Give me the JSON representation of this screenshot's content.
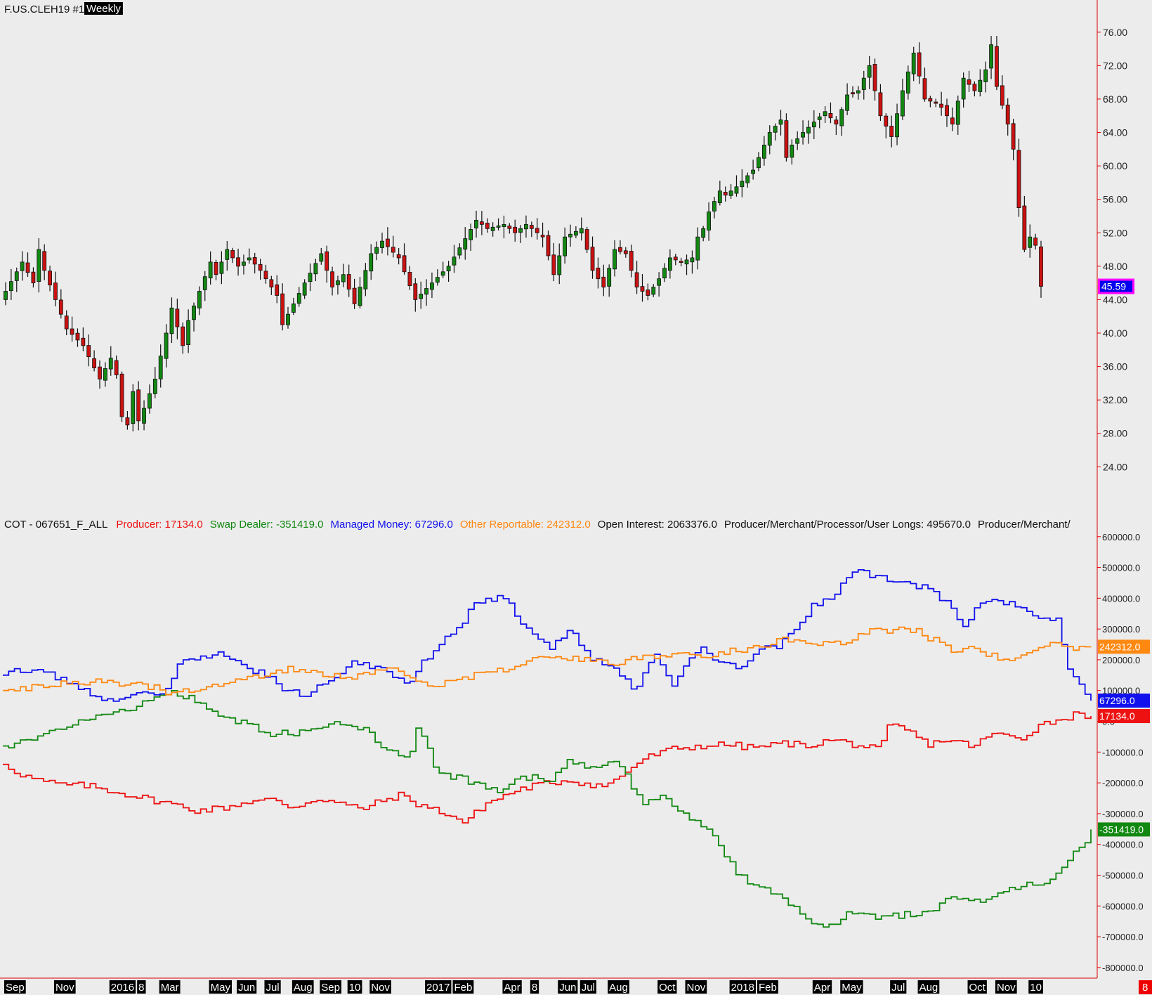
{
  "colors": {
    "background": "#ececec",
    "up_candle": "#118811",
    "down_candle": "#cc1111",
    "axis_red": "#dd0000",
    "producer": "#ee1111",
    "swap_dealer": "#118811",
    "managed_money": "#1111ee",
    "other_reportable": "#ff8811",
    "open_interest": "#111111"
  },
  "price_panel": {
    "symbol": "F.US.CLEH19 #1",
    "interval": "Weekly",
    "last_value_label": "45.59",
    "last_value": 45.59,
    "y_range": [
      21.0,
      78.0
    ],
    "y_ticks": [
      "76.00",
      "72.00",
      "68.00",
      "64.00",
      "60.00",
      "56.00",
      "52.00",
      "48.00",
      "44.00",
      "40.00",
      "36.00",
      "32.00",
      "28.00",
      "24.00"
    ],
    "y_tick_values": [
      76,
      72,
      68,
      64,
      60,
      56,
      52,
      48,
      44,
      40,
      36,
      32,
      28,
      24
    ]
  },
  "cot_panel": {
    "title": "COT - 067651_F_ALL",
    "legend": [
      {
        "key": "producer",
        "text": "Producer: 17134.0"
      },
      {
        "key": "swap_dealer",
        "text": "Swap Dealer: -351419.0"
      },
      {
        "key": "managed_money",
        "text": "Managed Money: 67296.0"
      },
      {
        "key": "other_reportable",
        "text": "Other Reportable: 242312.0"
      },
      {
        "key": "open_interest",
        "text": "Open Interest: 2063376.0"
      },
      {
        "key": "open_interest",
        "text": "Producer/Merchant/Processor/User Longs: 495670.0"
      },
      {
        "key": "open_interest",
        "text": "Producer/Merchant/"
      }
    ],
    "y_range": [
      -830000,
      620000
    ],
    "y_ticks": [
      "600000.0",
      "500000.0",
      "400000.0",
      "300000.0",
      "200000.0",
      "100000.0",
      "0.0",
      "-100000.0",
      "-200000.0",
      "-300000.0",
      "-400000.0",
      "-500000.0",
      "-600000.0",
      "-700000.0",
      "-800000.0"
    ],
    "y_tick_values": [
      600000,
      500000,
      400000,
      300000,
      200000,
      100000,
      0,
      -100000,
      -200000,
      -300000,
      -400000,
      -500000,
      -600000,
      -700000,
      -800000
    ],
    "last_labels": {
      "other_reportable": "242312.0",
      "managed_money": "67296.0",
      "producer": "17134.0",
      "swap_dealer": "-351419.0"
    }
  },
  "x_axis": {
    "labels": [
      "Sep",
      "Nov",
      "2016",
      "8",
      "Mar",
      "May",
      "Jun",
      "Jul",
      "Aug",
      "Sep",
      "10",
      "Nov",
      "2017",
      "Feb",
      "Apr",
      "8",
      "Jun",
      "Jul",
      "Aug",
      "Oct",
      "Nov",
      "2018",
      "Feb",
      "Apr",
      "May",
      "Jul",
      "Aug",
      "Oct",
      "Nov",
      "10"
    ],
    "label_bar_index": [
      0,
      9,
      19,
      24,
      28,
      37,
      42,
      47,
      52,
      57,
      62,
      66,
      76,
      81,
      90,
      95,
      100,
      104,
      109,
      118,
      123,
      131,
      136,
      146,
      151,
      160,
      165,
      174,
      179,
      185
    ],
    "corner_label": "8"
  },
  "chart_data": [
    {
      "type": "candlestick",
      "title": "F.US.CLEH19 #1 Weekly",
      "interval": "Weekly",
      "ylim": [
        21.0,
        78.0
      ],
      "grid": false,
      "anchors": [
        45.0,
        48.5,
        46.0,
        50.0,
        47.5,
        44.0,
        40.5,
        38.5,
        34.5,
        37.0,
        35.0,
        30.0,
        29.0,
        33.0,
        29.5,
        31.0,
        34.5,
        40.0,
        43.0,
        38.5,
        41.5,
        45.0,
        48.5,
        47.0,
        50.0,
        48.0,
        49.0,
        47.5,
        44.5,
        41.0,
        46.0,
        49.5,
        45.5,
        47.0,
        43.5,
        49.5,
        51.0,
        49.0,
        44.0,
        46.0,
        48.0,
        53.5,
        52.5,
        53.0,
        52.0,
        53.0,
        51.5,
        47.0,
        51.5,
        52.5,
        47.5,
        45.5,
        50.0,
        49.5,
        45.5,
        44.5,
        46.5,
        49.0,
        48.5,
        49.0,
        51.5,
        52.5,
        54.5,
        57.0,
        56.5,
        57.5,
        59.5,
        64.0,
        65.5,
        61.0,
        62.5,
        64.0,
        66.5,
        65.0,
        68.5,
        69.0,
        72.0,
        66.0,
        63.5,
        69.0,
        73.5,
        68.0,
        67.5,
        67.0,
        65.0,
        70.5,
        69.0,
        71.5,
        74.5,
        69.5,
        65.0,
        62.0,
        55.0,
        50.0,
        51.5,
        50.5,
        45.59
      ],
      "anchor_bar_index": [
        0,
        3,
        5,
        6,
        7,
        9,
        11,
        14,
        17,
        19,
        20,
        21,
        22,
        23,
        24,
        25,
        27,
        29,
        30,
        32,
        33,
        35,
        37,
        38,
        40,
        42,
        44,
        46,
        49,
        50,
        54,
        57,
        59,
        61,
        63,
        66,
        68,
        71,
        74,
        77,
        80,
        85,
        87,
        90,
        92,
        94,
        97,
        99,
        101,
        104,
        106,
        108,
        110,
        112,
        114,
        116,
        118,
        120,
        122,
        124,
        125,
        126,
        127,
        129,
        130,
        132,
        135,
        138,
        140,
        141,
        142,
        144,
        148,
        150,
        152,
        154,
        156,
        158,
        160,
        162,
        164,
        166,
        168,
        169,
        171,
        173,
        175,
        177,
        178,
        179,
        181,
        182,
        183,
        184,
        185,
        186,
        187
      ],
      "bar_count": 188,
      "last": 45.59
    },
    {
      "type": "line",
      "title": "COT - 067651_F_ALL",
      "step": true,
      "ylim": [
        -830000,
        620000
      ],
      "grid": false,
      "x_count": 188,
      "series": [
        {
          "name": "Producer",
          "color": "#ee1111",
          "last": 17134.0,
          "anchors": [
            -140000,
            -175000,
            -195000,
            -205000,
            -210000,
            -230000,
            -250000,
            -270000,
            -290000,
            -280000,
            -260000,
            -255000,
            -280000,
            -250000,
            -270000,
            -285000,
            -260000,
            -240000,
            -270000,
            -300000,
            -330000,
            -270000,
            -230000,
            -210000,
            -200000,
            -190000,
            -205000,
            -210000,
            -120000,
            -90000,
            -80000,
            -75000,
            -85000,
            -80000,
            -70000,
            -80000,
            -60000,
            -80000,
            -95000,
            -10000,
            -30000,
            -75000,
            -60000,
            -80000,
            -40000,
            -55000,
            -10000,
            5000,
            25000,
            17134
          ],
          "anchor_bar_index": [
            0,
            4,
            8,
            12,
            18,
            24,
            30,
            36,
            41,
            47,
            52,
            57,
            61,
            67,
            72,
            76,
            80,
            84,
            88,
            94,
            98,
            102,
            108,
            112,
            116,
            120,
            124,
            128,
            136,
            142,
            148,
            154,
            158,
            162,
            166,
            170,
            176,
            182,
            186,
            188,
            192,
            196,
            200,
            206,
            210,
            216,
            220,
            224,
            228,
            231
          ]
        },
        {
          "name": "Swap Dealer",
          "color": "#118811",
          "last": -351419.0,
          "anchors": [
            -80000,
            -60000,
            -40000,
            0,
            20000,
            60000,
            90000,
            100000,
            70000,
            20000,
            0,
            -40000,
            -40000,
            -20000,
            -10000,
            -20000,
            -100000,
            -120000,
            0,
            -170000,
            -190000,
            -210000,
            -230000,
            -180000,
            -190000,
            -120000,
            -150000,
            -130000,
            -270000,
            -240000,
            -320000,
            -350000,
            -500000,
            -550000,
            -600000,
            -680000,
            -620000,
            -640000,
            -630000,
            -620000,
            -570000,
            -590000,
            -560000,
            -520000,
            -530000,
            -450000,
            -380000,
            -351419
          ],
          "anchor_bar_index": [
            0,
            6,
            10,
            16,
            22,
            30,
            34,
            36,
            40,
            46,
            50,
            56,
            62,
            66,
            70,
            76,
            82,
            86,
            88,
            92,
            98,
            102,
            106,
            110,
            116,
            120,
            124,
            130,
            136,
            140,
            146,
            150,
            156,
            162,
            168,
            174,
            180,
            186,
            190,
            196,
            202,
            206,
            212,
            218,
            222,
            226,
            230,
            231
          ]
        },
        {
          "name": "Managed Money",
          "color": "#1111ee",
          "last": 67296.0,
          "anchors": [
            150000,
            170000,
            160000,
            140000,
            110000,
            70000,
            60000,
            90000,
            100000,
            200000,
            210000,
            230000,
            180000,
            150000,
            100000,
            80000,
            140000,
            200000,
            170000,
            130000,
            250000,
            290000,
            380000,
            410000,
            310000,
            240000,
            300000,
            210000,
            160000,
            100000,
            220000,
            110000,
            250000,
            190000,
            170000,
            230000,
            240000,
            300000,
            380000,
            400000,
            490000,
            470000,
            450000,
            430000,
            390000,
            310000,
            400000,
            390000,
            370000,
            340000,
            330000,
            160000,
            90000,
            67296
          ],
          "anchor_bar_index": [
            0,
            4,
            8,
            12,
            16,
            20,
            24,
            30,
            34,
            38,
            42,
            46,
            50,
            56,
            60,
            64,
            70,
            74,
            80,
            86,
            92,
            96,
            100,
            106,
            110,
            116,
            120,
            124,
            130,
            134,
            138,
            142,
            148,
            152,
            156,
            160,
            164,
            168,
            172,
            176,
            180,
            186,
            190,
            196,
            200,
            204,
            208,
            212,
            216,
            220,
            224,
            226,
            230,
            231
          ]
        },
        {
          "name": "Other Reportable",
          "color": "#ff8811",
          "last": 242312.0,
          "anchors": [
            100000,
            110000,
            120000,
            130000,
            120000,
            110000,
            90000,
            110000,
            140000,
            150000,
            170000,
            160000,
            140000,
            160000,
            170000,
            130000,
            120000,
            150000,
            170000,
            200000,
            210000,
            200000,
            190000,
            210000,
            220000,
            210000,
            230000,
            240000,
            270000,
            250000,
            260000,
            290000,
            300000,
            290000,
            260000,
            230000,
            240000,
            200000,
            220000,
            250000,
            240000,
            242312
          ],
          "anchor_bar_index": [
            0,
            6,
            12,
            20,
            28,
            32,
            36,
            42,
            50,
            56,
            60,
            66,
            72,
            78,
            84,
            88,
            92,
            100,
            106,
            112,
            118,
            124,
            130,
            136,
            142,
            148,
            154,
            160,
            166,
            172,
            178,
            184,
            190,
            194,
            198,
            202,
            206,
            212,
            216,
            222,
            228,
            231
          ]
        }
      ]
    }
  ]
}
